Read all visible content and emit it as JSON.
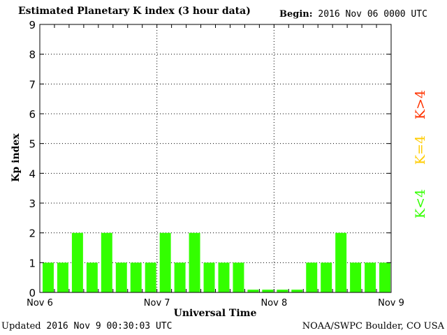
{
  "title": "Estimated Planetary K index (3 hour data)",
  "begin": {
    "label": "Begin:",
    "value": "2016 Nov 06 0000 UTC"
  },
  "updated": {
    "label": "Updated",
    "value": "2016 Nov  9 00:30:03 UTC"
  },
  "credit": "NOAA/SWPC Boulder, CO USA",
  "legend": [
    {
      "text": "K>4",
      "color": "#ff3300"
    },
    {
      "text": "K=4",
      "color": "#ffcc00"
    },
    {
      "text": "K<4",
      "color": "#33ff00"
    }
  ],
  "chart_data": {
    "type": "bar",
    "ylabel": "Kp index",
    "xlabel": "Universal Time",
    "ylim": [
      0,
      9
    ],
    "yticks": [
      "0",
      "1",
      "2",
      "3",
      "4",
      "5",
      "6",
      "7",
      "8",
      "9"
    ],
    "xticks": [
      "Nov 6",
      "Nov 7",
      "Nov 8",
      "Nov 9"
    ],
    "bar_color": "#33ff00",
    "values": [
      1,
      1,
      2,
      1,
      2,
      1,
      1,
      1,
      2,
      1,
      2,
      1,
      1,
      1,
      0,
      0,
      0,
      0,
      1,
      1,
      2,
      1,
      1,
      1
    ],
    "grid": true
  }
}
